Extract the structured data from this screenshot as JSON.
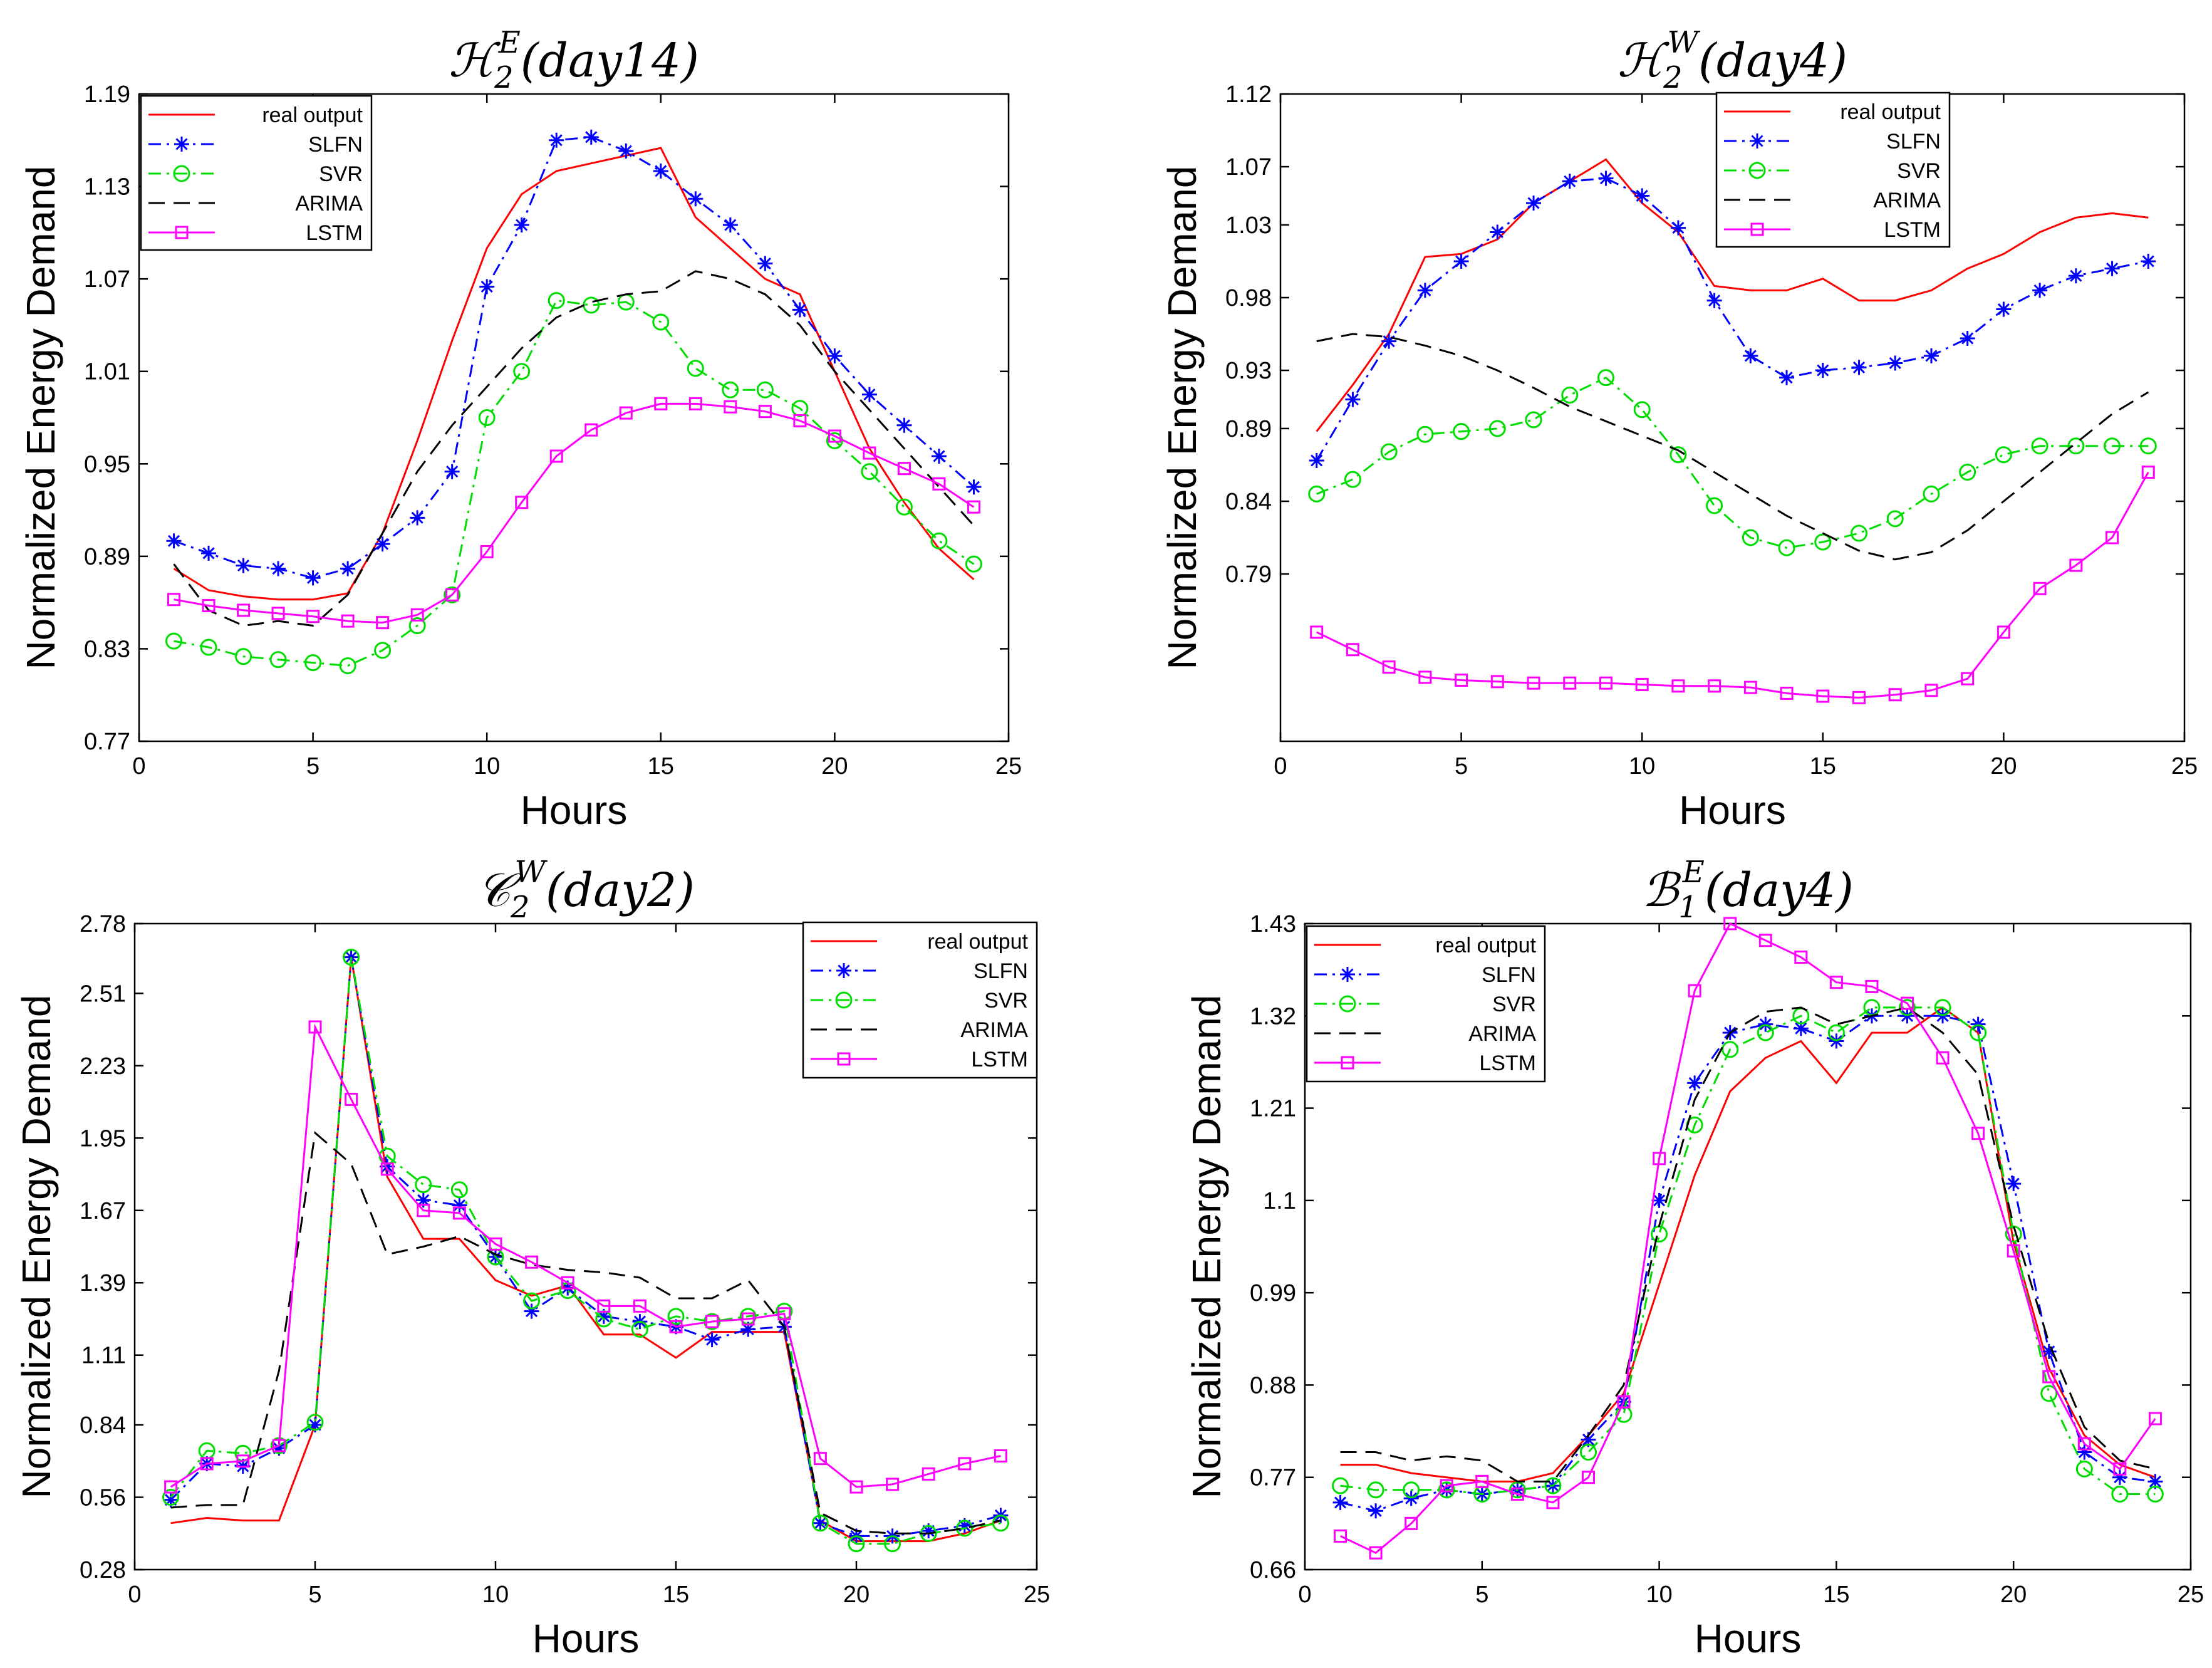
{
  "chart_data": [
    {
      "type": "line",
      "title": "H₂ᴱ(day14)",
      "title_parts": {
        "base": "ℋ",
        "sub": "2",
        "sup": "E",
        "arg": "(day14)"
      },
      "xlabel": "Hours",
      "ylabel": "Normalized Energy Demand",
      "xlim": [
        0,
        25
      ],
      "ylim": [
        0.77,
        1.19
      ],
      "xticks": [
        "0",
        "5",
        "10",
        "15",
        "20",
        "25"
      ],
      "yticks": [
        "0.77",
        "0.83",
        "0.89",
        "0.95",
        "1.01",
        "1.07",
        "1.13",
        "1.19"
      ],
      "legend_position": "top-left",
      "x": [
        1,
        2,
        3,
        4,
        5,
        6,
        7,
        8,
        9,
        10,
        11,
        12,
        13,
        14,
        15,
        16,
        17,
        18,
        19,
        20,
        21,
        22,
        23,
        24
      ],
      "series": [
        {
          "name": "real output",
          "values": [
            0.882,
            0.868,
            0.864,
            0.862,
            0.862,
            0.866,
            0.905,
            0.965,
            1.03,
            1.09,
            1.125,
            1.14,
            1.145,
            1.15,
            1.155,
            1.11,
            1.09,
            1.07,
            1.06,
            1.01,
            0.96,
            0.925,
            0.895,
            0.875
          ]
        },
        {
          "name": "SLFN",
          "values": [
            0.9,
            0.892,
            0.884,
            0.882,
            0.876,
            0.882,
            0.898,
            0.915,
            0.945,
            1.065,
            1.105,
            1.16,
            1.162,
            1.153,
            1.14,
            1.122,
            1.105,
            1.08,
            1.05,
            1.02,
            0.995,
            0.975,
            0.955,
            0.935
          ]
        },
        {
          "name": "SVR",
          "values": [
            0.835,
            0.831,
            0.825,
            0.823,
            0.821,
            0.819,
            0.829,
            0.845,
            0.865,
            0.98,
            1.01,
            1.056,
            1.053,
            1.055,
            1.042,
            1.012,
            0.998,
            0.998,
            0.986,
            0.965,
            0.945,
            0.922,
            0.9,
            0.885
          ]
        },
        {
          "name": "ARIMA",
          "values": [
            0.885,
            0.855,
            0.845,
            0.848,
            0.845,
            0.865,
            0.905,
            0.945,
            0.975,
            1.0,
            1.025,
            1.045,
            1.055,
            1.06,
            1.062,
            1.075,
            1.07,
            1.06,
            1.04,
            1.01,
            0.985,
            0.96,
            0.935,
            0.91
          ]
        },
        {
          "name": "LSTM",
          "values": [
            0.862,
            0.858,
            0.855,
            0.853,
            0.851,
            0.848,
            0.847,
            0.852,
            0.865,
            0.893,
            0.925,
            0.955,
            0.972,
            0.983,
            0.989,
            0.989,
            0.987,
            0.984,
            0.978,
            0.968,
            0.957,
            0.947,
            0.937,
            0.922
          ]
        }
      ]
    },
    {
      "type": "line",
      "title": "H₂ᵂ(day4)",
      "title_parts": {
        "base": "ℋ",
        "sub": "2",
        "sup": "W",
        "arg": "(day4)"
      },
      "xlabel": "Hours",
      "ylabel": "Normalized Energy Demand",
      "xlim": [
        0,
        25
      ],
      "ylim": [
        0.675,
        1.12
      ],
      "xticks": [
        "0",
        "5",
        "10",
        "15",
        "20",
        "25"
      ],
      "yticks": [
        "0.79",
        "0.84",
        "0.89",
        "0.93",
        "0.98",
        "1.03",
        "1.07",
        "1.12"
      ],
      "legend_position": "top-right",
      "x": [
        1,
        2,
        3,
        4,
        5,
        6,
        7,
        8,
        9,
        10,
        11,
        12,
        13,
        14,
        15,
        16,
        17,
        18,
        19,
        20,
        21,
        22,
        23,
        24
      ],
      "series": [
        {
          "name": "real output",
          "values": [
            0.888,
            0.92,
            0.955,
            1.008,
            1.01,
            1.02,
            1.045,
            1.06,
            1.075,
            1.045,
            1.025,
            0.988,
            0.985,
            0.985,
            0.993,
            0.978,
            0.978,
            0.985,
            1.0,
            1.01,
            1.025,
            1.035,
            1.038,
            1.035
          ]
        },
        {
          "name": "SLFN",
          "values": [
            0.868,
            0.91,
            0.95,
            0.985,
            1.005,
            1.025,
            1.045,
            1.06,
            1.062,
            1.05,
            1.028,
            0.978,
            0.94,
            0.925,
            0.93,
            0.932,
            0.935,
            0.94,
            0.952,
            0.972,
            0.985,
            0.995,
            1.0,
            1.005
          ]
        },
        {
          "name": "SVR",
          "values": [
            0.845,
            0.855,
            0.874,
            0.886,
            0.888,
            0.89,
            0.896,
            0.913,
            0.925,
            0.903,
            0.872,
            0.837,
            0.815,
            0.808,
            0.812,
            0.818,
            0.828,
            0.845,
            0.86,
            0.872,
            0.878,
            0.878,
            0.878,
            0.878
          ]
        },
        {
          "name": "ARIMA",
          "values": [
            0.95,
            0.955,
            0.953,
            0.947,
            0.94,
            0.93,
            0.918,
            0.905,
            0.895,
            0.885,
            0.875,
            0.86,
            0.845,
            0.83,
            0.818,
            0.806,
            0.8,
            0.805,
            0.82,
            0.84,
            0.86,
            0.88,
            0.9,
            0.915
          ]
        },
        {
          "name": "LSTM",
          "values": [
            0.75,
            0.738,
            0.726,
            0.719,
            0.717,
            0.716,
            0.715,
            0.715,
            0.715,
            0.714,
            0.713,
            0.713,
            0.712,
            0.708,
            0.706,
            0.705,
            0.707,
            0.71,
            0.718,
            0.75,
            0.78,
            0.796,
            0.815,
            0.86
          ]
        }
      ]
    },
    {
      "type": "line",
      "title": "C₂ᵂ(day2)",
      "title_parts": {
        "base": "𝒞",
        "sub": "2",
        "sup": "W",
        "arg": "(day2)"
      },
      "xlabel": "Hours",
      "ylabel": "Normalized Energy Demand",
      "xlim": [
        0,
        25
      ],
      "ylim": [
        0.28,
        2.78
      ],
      "xticks": [
        "0",
        "5",
        "10",
        "15",
        "20",
        "25"
      ],
      "yticks": [
        "0.28",
        "0.56",
        "0.84",
        "1.11",
        "1.39",
        "1.67",
        "1.95",
        "2.23",
        "2.51",
        "2.78"
      ],
      "legend_position": "top-right",
      "x": [
        1,
        2,
        3,
        4,
        5,
        6,
        7,
        8,
        9,
        10,
        11,
        12,
        13,
        14,
        15,
        16,
        17,
        18,
        19,
        20,
        21,
        22,
        23,
        24
      ],
      "series": [
        {
          "name": "real output",
          "values": [
            0.46,
            0.48,
            0.47,
            0.47,
            0.84,
            2.65,
            1.8,
            1.56,
            1.56,
            1.4,
            1.34,
            1.38,
            1.19,
            1.19,
            1.1,
            1.2,
            1.2,
            1.2,
            0.47,
            0.39,
            0.39,
            0.39,
            0.42,
            0.47
          ]
        },
        {
          "name": "SLFN",
          "values": [
            0.55,
            0.69,
            0.68,
            0.75,
            0.84,
            2.65,
            1.84,
            1.71,
            1.69,
            1.49,
            1.28,
            1.37,
            1.26,
            1.24,
            1.22,
            1.17,
            1.21,
            1.22,
            0.46,
            0.41,
            0.41,
            0.43,
            0.45,
            0.49
          ]
        },
        {
          "name": "SVR",
          "values": [
            0.56,
            0.74,
            0.73,
            0.76,
            0.85,
            2.65,
            1.88,
            1.77,
            1.75,
            1.49,
            1.32,
            1.36,
            1.25,
            1.21,
            1.26,
            1.24,
            1.26,
            1.28,
            0.46,
            0.38,
            0.38,
            0.42,
            0.44,
            0.46
          ]
        },
        {
          "name": "ARIMA",
          "values": [
            0.52,
            0.53,
            0.53,
            1.05,
            1.97,
            1.85,
            1.5,
            1.53,
            1.57,
            1.5,
            1.46,
            1.44,
            1.43,
            1.41,
            1.33,
            1.33,
            1.4,
            1.22,
            0.5,
            0.43,
            0.42,
            0.42,
            0.44,
            0.47
          ]
        },
        {
          "name": "LSTM",
          "values": [
            0.6,
            0.69,
            0.7,
            0.76,
            2.38,
            2.1,
            1.83,
            1.67,
            1.66,
            1.54,
            1.47,
            1.39,
            1.3,
            1.3,
            1.22,
            1.24,
            1.25,
            1.27,
            0.71,
            0.6,
            0.61,
            0.65,
            0.69,
            0.72
          ]
        }
      ]
    },
    {
      "type": "line",
      "title": "B₁ᴱ(day4)",
      "title_parts": {
        "base": "ℬ",
        "sub": "1",
        "sup": "E",
        "arg": "(day4)"
      },
      "xlabel": "Hours",
      "ylabel": "Normalized Energy Demand",
      "xlim": [
        0,
        25
      ],
      "ylim": [
        0.66,
        1.43
      ],
      "xticks": [
        "0",
        "5",
        "10",
        "15",
        "20",
        "25"
      ],
      "yticks": [
        "0.66",
        "0.77",
        "0.88",
        "0.99",
        "1.1",
        "1.21",
        "1.32",
        "1.43"
      ],
      "legend_position": "top-left",
      "x": [
        1,
        2,
        3,
        4,
        5,
        6,
        7,
        8,
        9,
        10,
        11,
        12,
        13,
        14,
        15,
        16,
        17,
        18,
        19,
        20,
        21,
        22,
        23,
        24
      ],
      "series": [
        {
          "name": "real output",
          "values": [
            0.785,
            0.785,
            0.775,
            0.77,
            0.765,
            0.765,
            0.775,
            0.82,
            0.87,
            1.0,
            1.13,
            1.23,
            1.27,
            1.29,
            1.24,
            1.3,
            1.3,
            1.33,
            1.3,
            1.05,
            0.9,
            0.82,
            0.785,
            0.77
          ]
        },
        {
          "name": "SLFN",
          "values": [
            0.74,
            0.73,
            0.745,
            0.755,
            0.75,
            0.755,
            0.76,
            0.815,
            0.86,
            1.1,
            1.24,
            1.3,
            1.31,
            1.305,
            1.29,
            1.32,
            1.32,
            1.32,
            1.31,
            1.12,
            0.92,
            0.8,
            0.77,
            0.765
          ]
        },
        {
          "name": "SVR",
          "values": [
            0.76,
            0.755,
            0.755,
            0.755,
            0.75,
            0.755,
            0.76,
            0.8,
            0.845,
            1.06,
            1.19,
            1.28,
            1.3,
            1.32,
            1.3,
            1.33,
            1.33,
            1.33,
            1.3,
            1.06,
            0.87,
            0.78,
            0.75,
            0.75
          ]
        },
        {
          "name": "ARIMA",
          "values": [
            0.8,
            0.8,
            0.79,
            0.795,
            0.79,
            0.765,
            0.765,
            0.82,
            0.88,
            1.07,
            1.22,
            1.3,
            1.325,
            1.33,
            1.31,
            1.32,
            1.33,
            1.3,
            1.25,
            1.07,
            0.93,
            0.83,
            0.79,
            0.78
          ]
        },
        {
          "name": "LSTM",
          "values": [
            0.7,
            0.68,
            0.715,
            0.76,
            0.765,
            0.75,
            0.74,
            0.77,
            0.86,
            1.15,
            1.35,
            1.43,
            1.41,
            1.39,
            1.36,
            1.355,
            1.335,
            1.27,
            1.18,
            1.04,
            0.89,
            0.81,
            0.78,
            0.84
          ]
        }
      ]
    }
  ],
  "styles": {
    "series": {
      "real output": {
        "color": "#ff0000",
        "dash": "",
        "marker": "none"
      },
      "SLFN": {
        "color": "#0000ff",
        "dash": "20,9,4,9",
        "marker": "asterisk"
      },
      "SVR": {
        "color": "#00dd00",
        "dash": "20,9,4,9",
        "marker": "circle"
      },
      "ARIMA": {
        "color": "#000000",
        "dash": "26,14",
        "marker": "none"
      },
      "LSTM": {
        "color": "#ff00ff",
        "dash": "",
        "marker": "square"
      }
    }
  }
}
